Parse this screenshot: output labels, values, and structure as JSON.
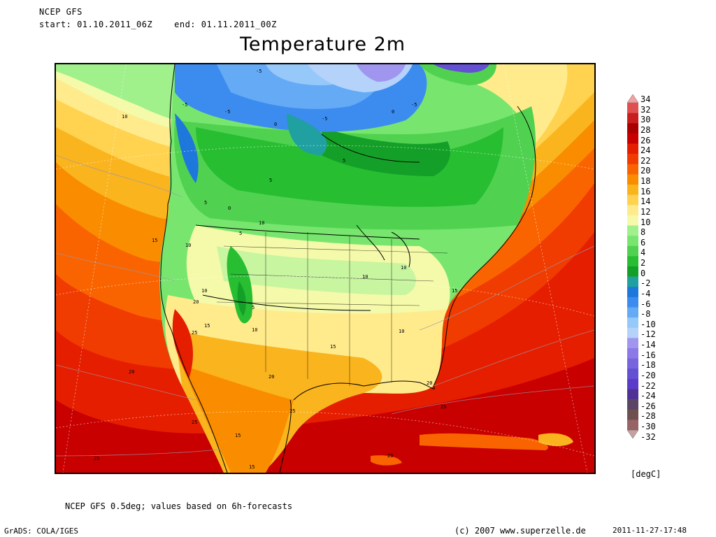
{
  "header": {
    "model": "NCEP GFS",
    "period": "start: 01.10.2011_06Z    end: 01.11.2011_00Z"
  },
  "title": "Temperature 2m",
  "colorbar": {
    "unit": "[degC]",
    "ticks": [
      "34",
      "32",
      "30",
      "28",
      "26",
      "24",
      "22",
      "20",
      "18",
      "16",
      "14",
      "12",
      "10",
      "8",
      "6",
      "4",
      "2",
      "0",
      "-2",
      "-4",
      "-6",
      "-8",
      "-10",
      "-12",
      "-14",
      "-16",
      "-18",
      "-20",
      "-22",
      "-24",
      "-26",
      "-28",
      "-30",
      "-32"
    ],
    "colors": [
      "#f2a0a0",
      "#e05050",
      "#c81e1e",
      "#aa0000",
      "#c80000",
      "#e61e00",
      "#f03c00",
      "#fa6400",
      "#fa8c00",
      "#fab41e",
      "#ffd250",
      "#ffeb8c",
      "#f5faaa",
      "#a0f08c",
      "#78e66e",
      "#50d250",
      "#28be32",
      "#14a028",
      "#20a0a0",
      "#1e78dc",
      "#3c8cf0",
      "#64aaf5",
      "#96c8fa",
      "#b4d2fa",
      "#a096f0",
      "#8c78e6",
      "#7864dc",
      "#6450d2",
      "#5a3cc8",
      "#503296",
      "#5a4664",
      "#6e5050",
      "#966464",
      "#c8a0a0"
    ]
  },
  "contour_labels": [
    "-5",
    "-5",
    "-5",
    "-5",
    "-5",
    "0",
    "0",
    "0",
    "5",
    "5",
    "5",
    "5",
    "5",
    "10",
    "10",
    "10",
    "10",
    "10",
    "10",
    "10",
    "10",
    "15",
    "15",
    "15",
    "15",
    "15",
    "15",
    "20",
    "20",
    "20",
    "20",
    "25",
    "25",
    "25",
    "25",
    "25",
    "25"
  ],
  "footer": {
    "note": "NCEP GFS 0.5deg; values based on 6h-forecasts",
    "grads": "GrADS: COLA/IGES",
    "copyright": "(c) 2007 www.superzelle.de",
    "timestamp": "2011-11-27-17:48"
  }
}
